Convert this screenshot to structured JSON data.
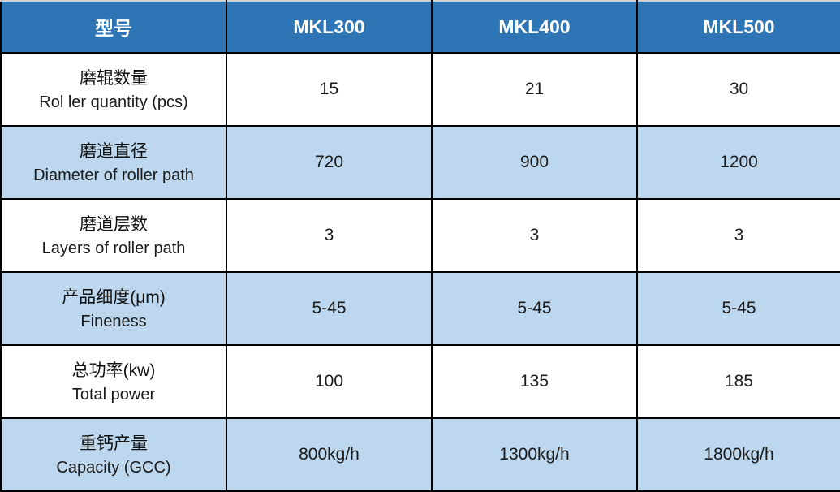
{
  "colors": {
    "header_bg": "#2E75B6",
    "header_text": "#FFFFFF",
    "zebra_row_bg": "#BDD7EE",
    "white_row_bg": "#FFFFFF",
    "grid_border": "#000000",
    "outer_top_border": "#D2D2D2",
    "body_text": "#1A1A1A"
  },
  "chart_data": {
    "type": "table",
    "title": "",
    "columns": [
      "型号",
      "MKL300",
      "MKL400",
      "MKL500"
    ],
    "rows": [
      {
        "label_zh": "磨辊数量",
        "label_en": "Rol ler quantity (pcs)",
        "values": [
          "15",
          "21",
          "30"
        ]
      },
      {
        "label_zh": "磨道直径",
        "label_en": "Diameter of roller path",
        "values": [
          "720",
          "900",
          "1200"
        ]
      },
      {
        "label_zh": "磨道层数",
        "label_en": "Layers of roller path",
        "values": [
          "3",
          "3",
          "3"
        ]
      },
      {
        "label_zh": "产品细度(μm)",
        "label_en": "Fineness",
        "values": [
          "5-45",
          "5-45",
          "5-45"
        ]
      },
      {
        "label_zh": "总功率(kw)",
        "label_en": "Total power",
        "values": [
          "100",
          "135",
          "185"
        ]
      },
      {
        "label_zh": "重钙产量",
        "label_en": "Capacity (GCC)",
        "values": [
          "800kg/h",
          "1300kg/h",
          "1800kg/h"
        ]
      }
    ]
  }
}
